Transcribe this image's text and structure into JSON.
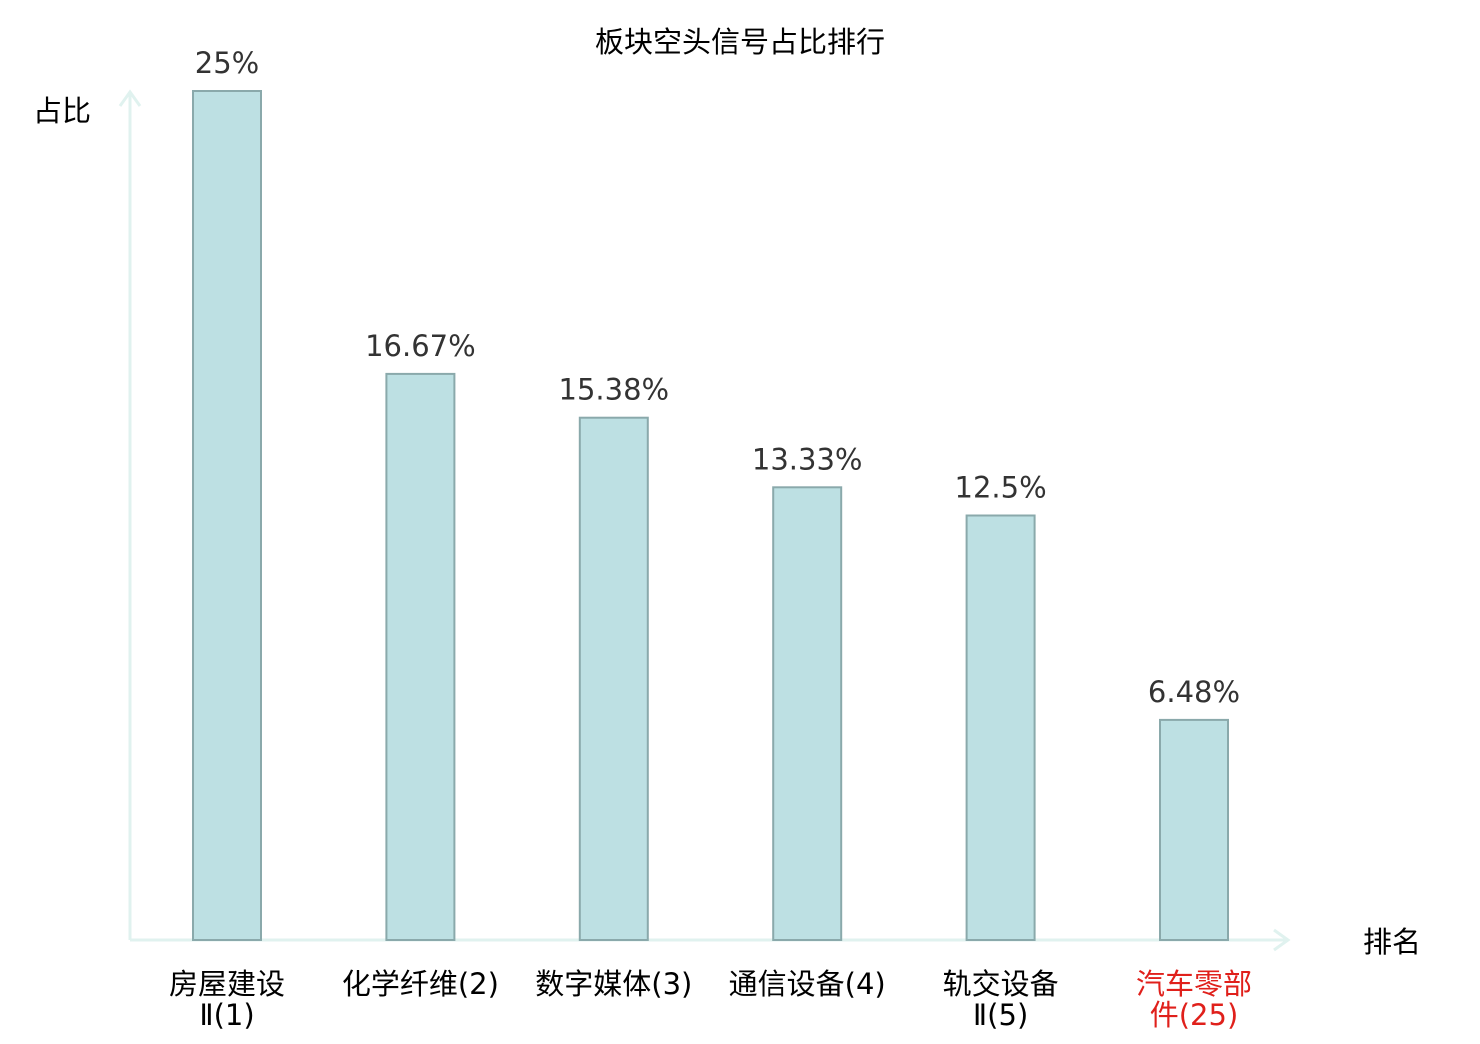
{
  "chart_data": {
    "type": "bar",
    "title": "板块空头信号占比排行",
    "ylabel": "占比",
    "xlabel": "排名",
    "ylim": [
      0,
      25
    ],
    "grid": false,
    "legend": "none",
    "categories": [
      [
        "房屋建设",
        "Ⅱ(1)"
      ],
      [
        "化学纤维(2)"
      ],
      [
        "数字媒体(3)"
      ],
      [
        "通信设备(4)"
      ],
      [
        "轨交设备",
        "Ⅱ(5)"
      ],
      [
        "汽车零部",
        "件(25)"
      ]
    ],
    "values": [
      25,
      16.67,
      15.38,
      13.33,
      12.5,
      6.48
    ],
    "data_labels": [
      "25%",
      "16.67%",
      "15.38%",
      "13.33%",
      "12.5%",
      "6.48%"
    ],
    "highlight_index": 5,
    "colors": {
      "bar_fill": "#bde0e3",
      "bar_stroke": "#8aa9ab",
      "axis": "#e0f2ef",
      "text": "#000000",
      "value_text": "#333333",
      "highlight": "#e0201b"
    }
  }
}
